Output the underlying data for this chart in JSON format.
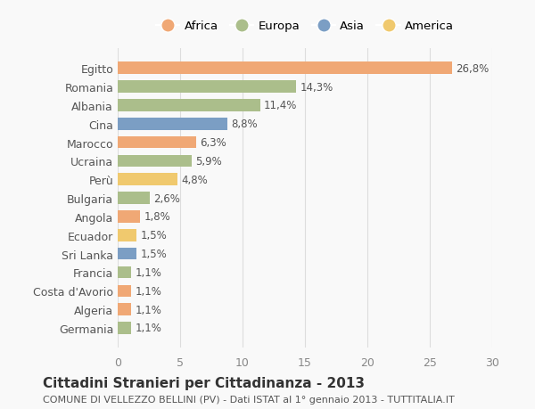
{
  "countries": [
    "Egitto",
    "Romania",
    "Albania",
    "Cina",
    "Marocco",
    "Ucraina",
    "Perù",
    "Bulgaria",
    "Angola",
    "Ecuador",
    "Sri Lanka",
    "Francia",
    "Costa d'Avorio",
    "Algeria",
    "Germania"
  ],
  "values": [
    26.8,
    14.3,
    11.4,
    8.8,
    6.3,
    5.9,
    4.8,
    2.6,
    1.8,
    1.5,
    1.5,
    1.1,
    1.1,
    1.1,
    1.1
  ],
  "labels": [
    "26,8%",
    "14,3%",
    "11,4%",
    "8,8%",
    "6,3%",
    "5,9%",
    "4,8%",
    "2,6%",
    "1,8%",
    "1,5%",
    "1,5%",
    "1,1%",
    "1,1%",
    "1,1%",
    "1,1%"
  ],
  "continents": [
    "Africa",
    "Europa",
    "Europa",
    "Asia",
    "Africa",
    "Europa",
    "America",
    "Europa",
    "Africa",
    "America",
    "Asia",
    "Europa",
    "Africa",
    "Africa",
    "Europa"
  ],
  "continent_colors": {
    "Africa": "#F0A875",
    "Europa": "#ABBE8B",
    "Asia": "#7B9EC4",
    "America": "#F0C96E"
  },
  "legend_order": [
    "Africa",
    "Europa",
    "Asia",
    "America"
  ],
  "title": "Cittadini Stranieri per Cittadinanza - 2013",
  "subtitle": "COMUNE DI VELLEZZO BELLINI (PV) - Dati ISTAT al 1° gennaio 2013 - TUTTITALIA.IT",
  "xlim": [
    0,
    30
  ],
  "xticks": [
    0,
    5,
    10,
    15,
    20,
    25,
    30
  ],
  "background_color": "#f9f9f9",
  "grid_color": "#dddddd",
  "title_fontsize": 11,
  "subtitle_fontsize": 8,
  "bar_height": 0.65,
  "label_fontsize": 8.5
}
